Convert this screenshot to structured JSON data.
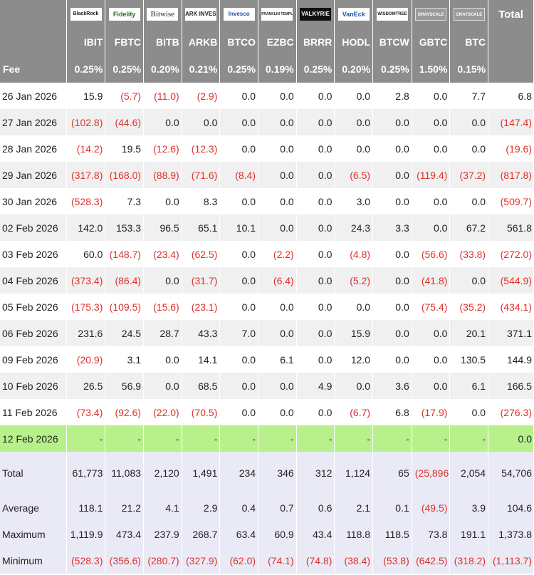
{
  "chart_data": {
    "type": "table",
    "title": "",
    "issuers": [
      {
        "name": "BlackRock",
        "logo_icon": "blackrock-logo"
      },
      {
        "name": "Fidelity",
        "logo_icon": "fidelity-logo"
      },
      {
        "name": "Bitwise",
        "logo_icon": "bitwise-logo"
      },
      {
        "name": "ARK INVEST",
        "logo_icon": "ark-logo"
      },
      {
        "name": "Invesco",
        "logo_icon": "invesco-logo"
      },
      {
        "name": "FRANKLIN TEMPLETON",
        "logo_icon": "franklin-logo"
      },
      {
        "name": "VALKYRIE",
        "logo_icon": "valkyrie-logo"
      },
      {
        "name": "VanEck",
        "logo_icon": "vaneck-logo"
      },
      {
        "name": "WISDOMTREE",
        "logo_icon": "wisdomtree-logo"
      },
      {
        "name": "GRAYSCALE",
        "logo_icon": "grayscale-logo"
      },
      {
        "name": "GRAYSCALE",
        "logo_icon": "grayscale-logo"
      }
    ],
    "total_header": "Total",
    "tickers": [
      "IBIT",
      "FBTC",
      "BITB",
      "ARKB",
      "BTCO",
      "EZBC",
      "BRRR",
      "HODL",
      "BTCW",
      "GBTC",
      "BTC"
    ],
    "fee_label": "Fee",
    "fees": [
      "0.25%",
      "0.25%",
      "0.20%",
      "0.21%",
      "0.25%",
      "0.19%",
      "0.25%",
      "0.20%",
      "0.25%",
      "1.50%",
      "0.15%"
    ],
    "rows": [
      {
        "date": "26 Jan 2026",
        "values": [
          "15.9",
          "(5.7)",
          "(11.0)",
          "(2.9)",
          "0.0",
          "0.0",
          "0.0",
          "0.0",
          "2.8",
          "0.0",
          "7.7"
        ],
        "total": "6.8"
      },
      {
        "date": "27 Jan 2026",
        "values": [
          "(102.8)",
          "(44.6)",
          "0.0",
          "0.0",
          "0.0",
          "0.0",
          "0.0",
          "0.0",
          "0.0",
          "0.0",
          "0.0"
        ],
        "total": "(147.4)"
      },
      {
        "date": "28 Jan 2026",
        "values": [
          "(14.2)",
          "19.5",
          "(12.6)",
          "(12.3)",
          "0.0",
          "0.0",
          "0.0",
          "0.0",
          "0.0",
          "0.0",
          "0.0"
        ],
        "total": "(19.6)"
      },
      {
        "date": "29 Jan 2026",
        "values": [
          "(317.8)",
          "(168.0)",
          "(88.9)",
          "(71.6)",
          "(8.4)",
          "0.0",
          "0.0",
          "(6.5)",
          "0.0",
          "(119.4)",
          "(37.2)"
        ],
        "total": "(817.8)"
      },
      {
        "date": "30 Jan 2026",
        "values": [
          "(528.3)",
          "7.3",
          "0.0",
          "8.3",
          "0.0",
          "0.0",
          "0.0",
          "3.0",
          "0.0",
          "0.0",
          "0.0"
        ],
        "total": "(509.7)"
      },
      {
        "date": "02 Feb 2026",
        "values": [
          "142.0",
          "153.3",
          "96.5",
          "65.1",
          "10.1",
          "0.0",
          "0.0",
          "24.3",
          "3.3",
          "0.0",
          "67.2"
        ],
        "total": "561.8"
      },
      {
        "date": "03 Feb 2026",
        "values": [
          "60.0",
          "(148.7)",
          "(23.4)",
          "(62.5)",
          "0.0",
          "(2.2)",
          "0.0",
          "(4.8)",
          "0.0",
          "(56.6)",
          "(33.8)"
        ],
        "total": "(272.0)"
      },
      {
        "date": "04 Feb 2026",
        "values": [
          "(373.4)",
          "(86.4)",
          "0.0",
          "(31.7)",
          "0.0",
          "(6.4)",
          "0.0",
          "(5.2)",
          "0.0",
          "(41.8)",
          "0.0"
        ],
        "total": "(544.9)"
      },
      {
        "date": "05 Feb 2026",
        "values": [
          "(175.3)",
          "(109.5)",
          "(15.6)",
          "(23.1)",
          "0.0",
          "0.0",
          "0.0",
          "0.0",
          "0.0",
          "(75.4)",
          "(35.2)"
        ],
        "total": "(434.1)"
      },
      {
        "date": "06 Feb 2026",
        "values": [
          "231.6",
          "24.5",
          "28.7",
          "43.3",
          "7.0",
          "0.0",
          "0.0",
          "15.9",
          "0.0",
          "0.0",
          "20.1"
        ],
        "total": "371.1"
      },
      {
        "date": "09 Feb 2026",
        "values": [
          "(20.9)",
          "3.1",
          "0.0",
          "14.1",
          "0.0",
          "6.1",
          "0.0",
          "12.0",
          "0.0",
          "0.0",
          "130.5"
        ],
        "total": "144.9"
      },
      {
        "date": "10 Feb 2026",
        "values": [
          "26.5",
          "56.9",
          "0.0",
          "68.5",
          "0.0",
          "0.0",
          "4.9",
          "0.0",
          "3.6",
          "0.0",
          "6.1"
        ],
        "total": "166.5"
      },
      {
        "date": "11 Feb 2026",
        "values": [
          "(73.4)",
          "(92.6)",
          "(22.0)",
          "(70.5)",
          "0.0",
          "0.0",
          "0.0",
          "(6.7)",
          "6.8",
          "(17.9)",
          "0.0"
        ],
        "total": "(276.3)"
      },
      {
        "date": "12 Feb 2026",
        "values": [
          "-",
          "-",
          "-",
          "-",
          "-",
          "-",
          "-",
          "-",
          "-",
          "-",
          "-"
        ],
        "total": "0.0",
        "highlight": true
      }
    ],
    "stats": [
      {
        "label": "Total",
        "values": [
          "61,773",
          "11,083",
          "2,120",
          "1,491",
          "234",
          "346",
          "312",
          "1,124",
          "65",
          "(25,896)",
          "2,054"
        ],
        "total": "54,706"
      },
      {
        "label": "Average",
        "values": [
          "118.1",
          "21.2",
          "4.1",
          "2.9",
          "0.4",
          "0.7",
          "0.6",
          "2.1",
          "0.1",
          "(49.5)",
          "3.9"
        ],
        "total": "104.6"
      },
      {
        "label": "Maximum",
        "values": [
          "1,119.9",
          "473.4",
          "237.9",
          "268.7",
          "63.4",
          "60.9",
          "43.4",
          "118.8",
          "118.5",
          "73.8",
          "191.1"
        ],
        "total": "1,373.8"
      },
      {
        "label": "Minimum",
        "values": [
          "(528.3)",
          "(356.6)",
          "(280.7)",
          "(327.9)",
          "(62.0)",
          "(74.1)",
          "(74.8)",
          "(38.4)",
          "(53.8)",
          "(642.5)",
          "(318.2)"
        ],
        "total": "(1,113.7)"
      }
    ]
  },
  "colors": {
    "header_bg": "#8c8c8c",
    "negative": "#e0302a",
    "row_alt": "#f0f0f0",
    "highlight_row": "#b8f08c",
    "stats_bg": "#eaeaf7"
  }
}
